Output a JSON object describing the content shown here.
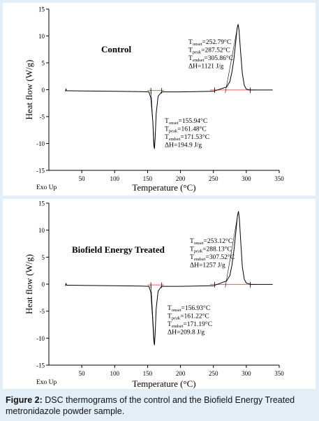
{
  "caption": {
    "label": "Figure 2:",
    "text": " DSC thermograms of the control and the Biofield Energy Treated metronidazole powder sample."
  },
  "colors": {
    "background": "#e3eef7",
    "trace": "#000000",
    "baseline": "#e06060",
    "panel": "#ffffff"
  },
  "chart_data": [
    {
      "type": "line",
      "title": "Control",
      "xlabel": "Temperature (°C)",
      "ylabel": "Heat flow (W/g)",
      "exo_label": "Exo Up",
      "xlim": [
        0,
        350
      ],
      "ylim": [
        -15,
        15
      ],
      "xticks": [
        "50",
        "100",
        "150",
        "200",
        "250",
        "300",
        "350"
      ],
      "yticks": [
        "15",
        "10",
        "5",
        "0",
        "-5",
        "-10",
        "-15"
      ],
      "series": [
        {
          "x": [
            25,
            26,
            27,
            30,
            60,
            100,
            140,
            152,
            155,
            158,
            159.5,
            160.5,
            161.5,
            163,
            166,
            171.5,
            200,
            250,
            270,
            275,
            278,
            281,
            284,
            286,
            287.5,
            289,
            291,
            294,
            297,
            300,
            305.9,
            320,
            340
          ],
          "y": [
            -0.3,
            0.1,
            -0.2,
            -0.2,
            -0.25,
            -0.3,
            -0.35,
            -0.4,
            -1.5,
            -6,
            -10.4,
            -11,
            -9,
            -4.5,
            -1.2,
            -0.4,
            -0.4,
            -0.3,
            0.5,
            1.5,
            3.2,
            5.5,
            9,
            11.4,
            12.2,
            11,
            7.5,
            3,
            0.8,
            0.1,
            -0.05,
            -0.05,
            -0.05
          ]
        }
      ],
      "annotations": [
        {
          "lines": [
            [
              "T",
              "onset",
              "=252.79°C"
            ],
            [
              "T",
              "peak",
              "=287.52°C"
            ],
            [
              "T",
              "endset",
              "=305.86°C"
            ],
            [
              "ΔH=1121 J/g"
            ]
          ]
        },
        {
          "lines": [
            [
              "T",
              "onset",
              "=155.94°C"
            ],
            [
              "T",
              "peak",
              "=161.48°C"
            ],
            [
              "T",
              "endset",
              "=171.53°C"
            ],
            [
              "ΔH=194.9 J/g"
            ]
          ]
        }
      ]
    },
    {
      "type": "line",
      "title": "Biofield Energy Treated",
      "xlabel": "Temperature (°C)",
      "ylabel": "Heat flow (W/g)",
      "exo_label": "Exo Up",
      "xlim": [
        0,
        350
      ],
      "ylim": [
        -15,
        15
      ],
      "xticks": [
        "50",
        "100",
        "150",
        "200",
        "250",
        "300",
        "350"
      ],
      "yticks": [
        "15",
        "10",
        "5",
        "0",
        "-5",
        "-10",
        "-15"
      ],
      "series": [
        {
          "x": [
            25,
            26,
            27,
            30,
            60,
            100,
            140,
            152,
            155,
            157.5,
            159.5,
            160.5,
            161.5,
            163,
            166,
            171.2,
            200,
            250,
            270,
            275,
            278,
            281,
            284,
            286.5,
            288.1,
            289.5,
            291.5,
            294,
            297,
            300,
            307.5,
            320,
            340
          ],
          "y": [
            -0.3,
            0.1,
            -0.2,
            -0.2,
            -0.25,
            -0.3,
            -0.35,
            -0.4,
            -1.5,
            -6,
            -10.6,
            -11.3,
            -9.2,
            -4.6,
            -1.3,
            -0.4,
            -0.4,
            -0.3,
            0.6,
            1.6,
            3.4,
            6,
            9.5,
            12.6,
            13.5,
            12,
            8,
            3.2,
            0.9,
            0.2,
            -0.05,
            -0.05,
            -0.05
          ]
        }
      ],
      "annotations": [
        {
          "lines": [
            [
              "T",
              "onset",
              "=253.12°C"
            ],
            [
              "T",
              "peak",
              "=288.13°C"
            ],
            [
              "T",
              "endset",
              "=307.52°C"
            ],
            [
              "ΔH=1257 J/g"
            ]
          ]
        },
        {
          "lines": [
            [
              "T",
              "onset",
              "=156.93°C"
            ],
            [
              "T",
              "peak",
              "=161.22°C"
            ],
            [
              "T",
              "endset",
              "=171.19°C"
            ],
            [
              "ΔH=209.8 J/g"
            ]
          ]
        }
      ]
    }
  ]
}
